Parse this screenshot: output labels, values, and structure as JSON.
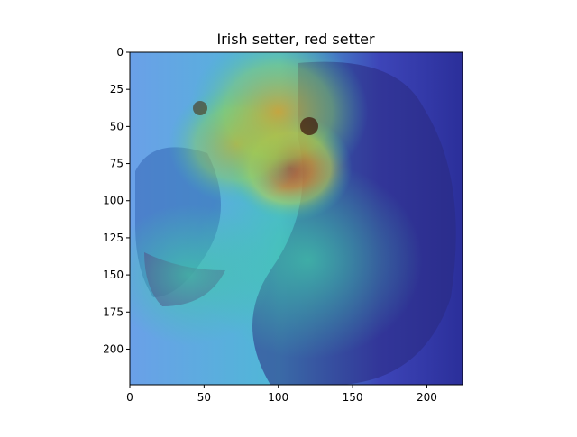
{
  "chart_data": {
    "type": "heatmap",
    "title": "Irish setter, red setter",
    "xlabel": "",
    "ylabel": "",
    "xlim": [
      0,
      224
    ],
    "ylim": [
      224,
      0
    ],
    "x_ticks": [
      0,
      50,
      100,
      150,
      200
    ],
    "y_ticks": [
      0,
      25,
      50,
      75,
      100,
      125,
      150,
      175,
      200
    ],
    "grid": false,
    "colormap": "jet",
    "underlying_image": "dog-photo",
    "hotspots": [
      {
        "x": 108,
        "y": 78,
        "intensity": 1.0,
        "radius": 38
      },
      {
        "x": 72,
        "y": 62,
        "intensity": 0.75,
        "radius": 42
      },
      {
        "x": 100,
        "y": 40,
        "intensity": 0.55,
        "radius": 55
      },
      {
        "x": 120,
        "y": 140,
        "intensity": 0.45,
        "radius": 70
      },
      {
        "x": 40,
        "y": 150,
        "intensity": 0.3,
        "radius": 50
      }
    ]
  },
  "colors": {
    "axes": "#000000",
    "background": "#ffffff",
    "cold": "#2b2fb0",
    "hot": "#d42a1a"
  }
}
